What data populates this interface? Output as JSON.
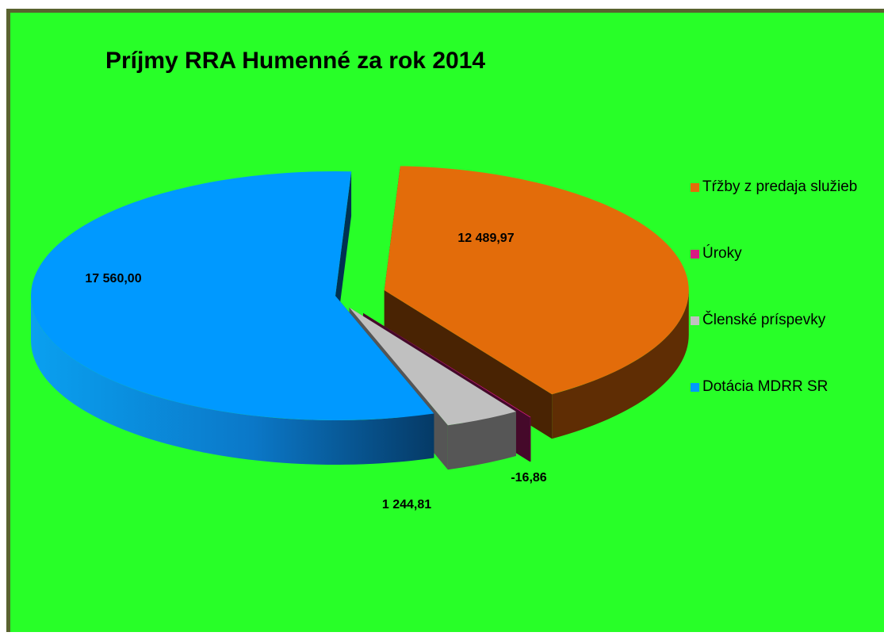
{
  "chart_data": {
    "type": "pie",
    "title": "Príjmy RRA Humenné za rok 2014",
    "legend_position": "right",
    "categories": [
      "Tŕžby z predaja služieb",
      "Úroky",
      "Členské príspevky",
      "Dotácia MDRR SR"
    ],
    "values": [
      12489.97,
      -16.86,
      1244.81,
      17560.0
    ],
    "data_labels": [
      "12 489,97",
      "-16,86",
      "1 244,81",
      "17 560,00"
    ],
    "colors": [
      "#e36c0a",
      "#d81b84",
      "#c0c0c0",
      "#0099ff"
    ]
  }
}
